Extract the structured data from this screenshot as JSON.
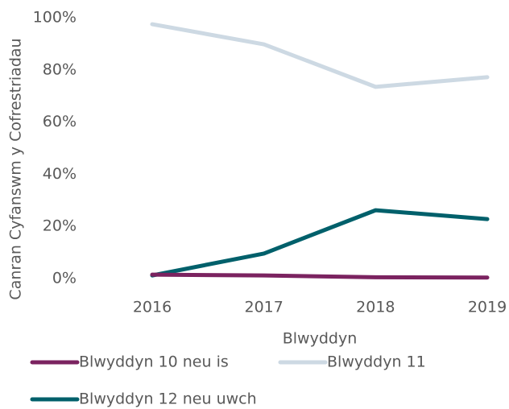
{
  "chart_data": {
    "type": "line",
    "categories": [
      "2016",
      "2017",
      "2018",
      "2019"
    ],
    "x_label": "Blwyddyn",
    "y_label": "Canran Cyfanswm y Cofrestriadau",
    "series": [
      {
        "name": "Blwyddyn 10 neu is",
        "color": "#7b2360",
        "values": [
          1.5,
          1.2,
          0.5,
          0.4
        ]
      },
      {
        "name": "Blwyddyn 11",
        "color": "#cdd9e3",
        "values": [
          97.5,
          89.8,
          73.5,
          77.2
        ]
      },
      {
        "name": "Blwyddyn 12 neu uwch",
        "color": "#00606b",
        "values": [
          1.2,
          9.6,
          26.2,
          22.8
        ]
      }
    ],
    "ylim": [
      0,
      100
    ],
    "yticks": [
      {
        "value": 0,
        "label": "0%"
      },
      {
        "value": 20,
        "label": "20%"
      },
      {
        "value": 40,
        "label": "40%"
      },
      {
        "value": 60,
        "label": "60%"
      },
      {
        "value": 80,
        "label": "80%"
      },
      {
        "value": 100,
        "label": "100%"
      }
    ],
    "grid": false
  }
}
